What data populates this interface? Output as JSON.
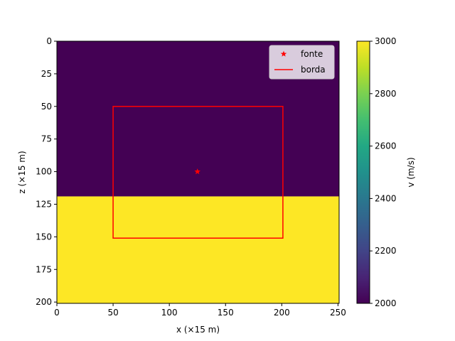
{
  "chart_data": {
    "type": "heatmap",
    "xlabel": "x (×15 m)",
    "ylabel": "z (×15 m)",
    "colorbar_label": "v (m/s)",
    "xlim": [
      0,
      251
    ],
    "ylim": [
      201,
      0
    ],
    "x_ticks": [
      0,
      50,
      100,
      150,
      200,
      250
    ],
    "y_ticks": [
      0,
      25,
      50,
      75,
      100,
      125,
      150,
      175,
      200
    ],
    "colorbar_range": [
      2000,
      3000
    ],
    "colorbar_ticks": [
      2000,
      2200,
      2400,
      2600,
      2800,
      3000
    ],
    "colormap": "viridis",
    "layers": [
      {
        "z_from": 0,
        "z_to": 119,
        "velocity": 2000,
        "color": "#440154"
      },
      {
        "z_from": 119,
        "z_to": 201,
        "velocity": 3000,
        "color": "#fde725"
      }
    ],
    "series": [
      {
        "name": "fonte",
        "type": "point",
        "marker": "star",
        "color": "#ff0000",
        "x": 125,
        "y": 100
      },
      {
        "name": "borda",
        "type": "rectangle",
        "color": "#ff0000",
        "x_min": 50,
        "x_max": 201,
        "z_min": 50,
        "z_max": 151
      }
    ],
    "legend": {
      "position": "top-right",
      "entries": [
        "fonte",
        "borda"
      ]
    }
  }
}
